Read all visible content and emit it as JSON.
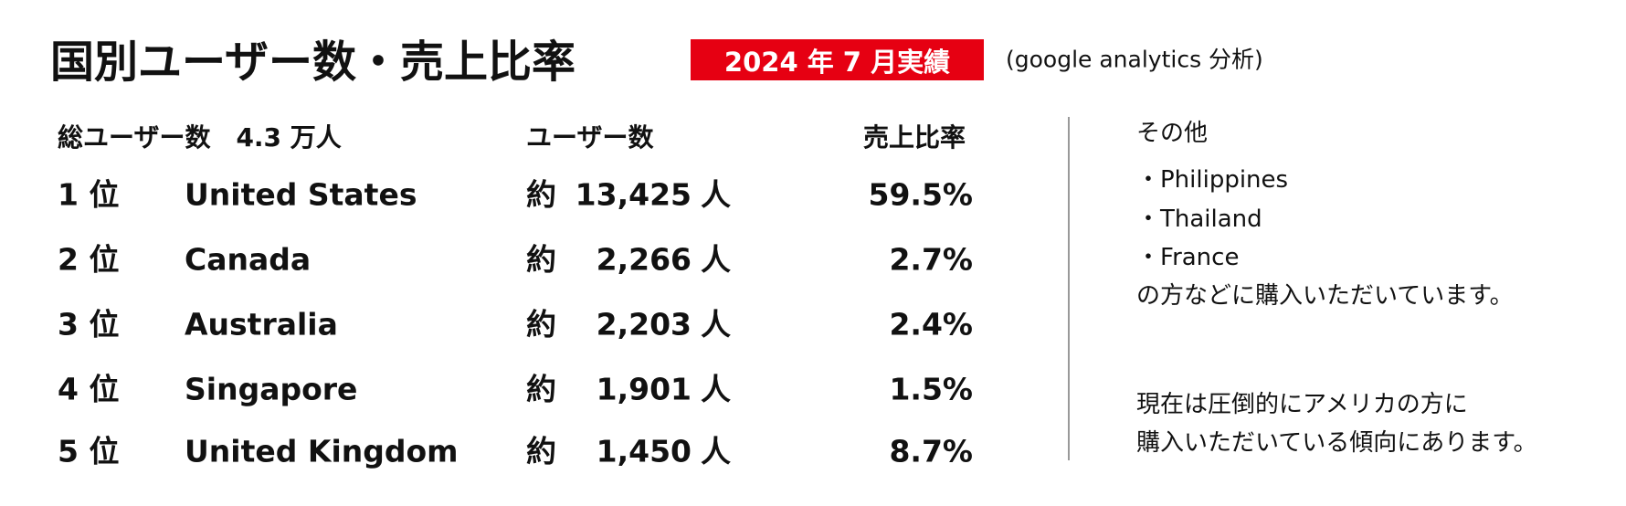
{
  "header": {
    "title": "国別ユーザー数・売上比率",
    "badge": "2024 年 7 月実績",
    "note": "(google analytics 分析)"
  },
  "table": {
    "columns": [
      "総ユーザー数　4.3 万人",
      "ユーザー数",
      "売上比率"
    ],
    "rows": [
      [
        "1 位",
        "United States",
        "約",
        "13,425",
        "人",
        "59.5%"
      ],
      [
        "2 位",
        "Canada",
        "約",
        "2,266",
        "人",
        "2.7%"
      ],
      [
        "3 位",
        "Australia",
        "約",
        "2,203",
        "人",
        "2.4%"
      ],
      [
        "4 位",
        "Singapore",
        "約",
        "1,901",
        "人",
        "1.5%"
      ],
      [
        "5 位",
        "United Kingdom",
        "約",
        "1,450",
        "人",
        "8.7%"
      ]
    ]
  },
  "side": {
    "heading": "その他",
    "items": [
      "・Philippines",
      "・Thailand",
      "・France"
    ],
    "lines": [
      "の方などに購入いただいています。"
    ],
    "summary": [
      "現在は圧倒的にアメリカの方に",
      "購入いただいている傾向にあります。"
    ]
  }
}
